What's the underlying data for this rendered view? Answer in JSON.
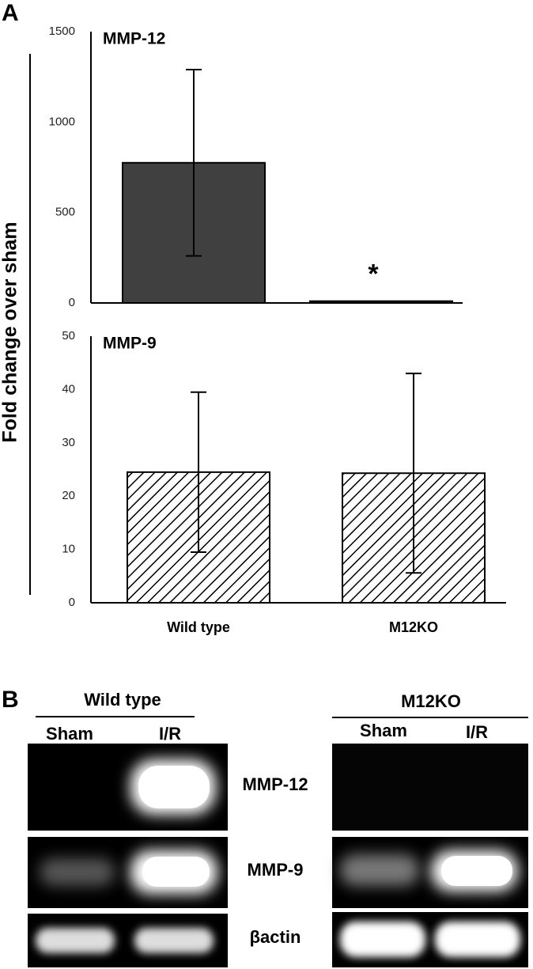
{
  "panel_labels": [
    "A",
    "B"
  ],
  "shared_ylabel": "Fold change over sham",
  "chart_data": [
    {
      "type": "bar",
      "title": "MMP-12",
      "values": [
        775,
        10
      ],
      "errors": [
        515,
        0
      ],
      "color": "#404040",
      "pattern": "solid",
      "annotation": "*",
      "ylim": [
        0,
        1500
      ],
      "yticks": [
        0,
        500,
        1000,
        1500
      ]
    },
    {
      "type": "bar",
      "title": "MMP-9",
      "categories": [
        "Wild type",
        "M12KO"
      ],
      "values": [
        24.5,
        24.3
      ],
      "errors": [
        15,
        18.7
      ],
      "color": "#000000",
      "pattern": "hatch",
      "ylim": [
        0,
        50
      ],
      "yticks": [
        0,
        10,
        20,
        30,
        40,
        50
      ]
    }
  ],
  "gel": {
    "groups": [
      {
        "name": "Wild type",
        "lanes": [
          "Sham",
          "I/R"
        ]
      },
      {
        "name": "M12KO",
        "lanes": [
          "Sham",
          "I/R"
        ]
      }
    ],
    "rows": [
      "MMP-12",
      "MMP-9",
      "βactin"
    ]
  }
}
